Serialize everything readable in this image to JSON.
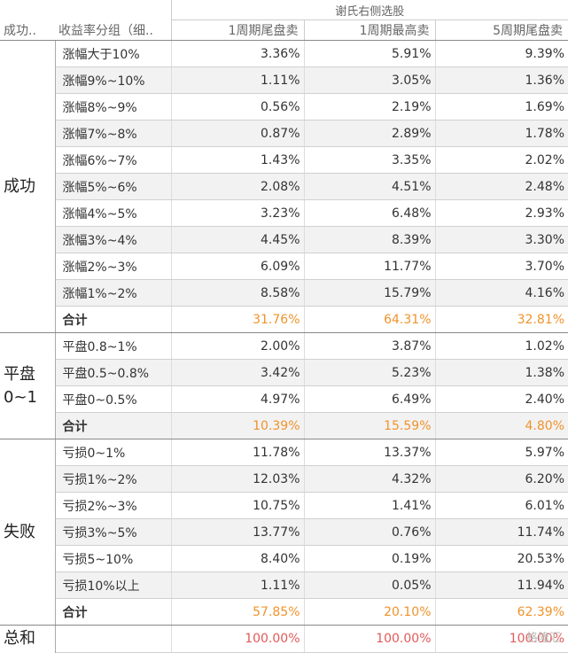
{
  "header": {
    "top_title": "谢氏右侧选股",
    "col_group": "成功..",
    "col_label": "收益率分组（细..",
    "cols": [
      "1周期尾盘卖",
      "1周期最高卖",
      "5周期尾盘卖"
    ]
  },
  "groups": [
    {
      "name": "成功",
      "rows": [
        {
          "label": "涨幅大于10%",
          "values": [
            "3.36%",
            "5.91%",
            "9.39%"
          ]
        },
        {
          "label": "涨幅9%~10%",
          "values": [
            "1.11%",
            "3.05%",
            "1.36%"
          ]
        },
        {
          "label": "涨幅8%~9%",
          "values": [
            "0.56%",
            "2.19%",
            "1.69%"
          ]
        },
        {
          "label": "涨幅7%~8%",
          "values": [
            "0.87%",
            "2.89%",
            "1.78%"
          ]
        },
        {
          "label": "涨幅6%~7%",
          "values": [
            "1.43%",
            "3.35%",
            "2.02%"
          ]
        },
        {
          "label": "涨幅5%~6%",
          "values": [
            "2.08%",
            "4.51%",
            "2.48%"
          ]
        },
        {
          "label": "涨幅4%~5%",
          "values": [
            "3.23%",
            "6.48%",
            "2.93%"
          ]
        },
        {
          "label": "涨幅3%~4%",
          "values": [
            "4.45%",
            "8.39%",
            "3.30%"
          ]
        },
        {
          "label": "涨幅2%~3%",
          "values": [
            "6.09%",
            "11.77%",
            "3.70%"
          ]
        },
        {
          "label": "涨幅1%~2%",
          "values": [
            "8.58%",
            "15.79%",
            "4.16%"
          ]
        }
      ],
      "total": {
        "label": "合计",
        "values": [
          "31.76%",
          "64.31%",
          "32.81%"
        ]
      }
    },
    {
      "name": "平盘0~1",
      "rows": [
        {
          "label": "平盘0.8~1%",
          "values": [
            "2.00%",
            "3.87%",
            "1.02%"
          ]
        },
        {
          "label": "平盘0.5~0.8%",
          "values": [
            "3.42%",
            "5.23%",
            "1.38%"
          ]
        },
        {
          "label": "平盘0~0.5%",
          "values": [
            "4.97%",
            "6.49%",
            "2.40%"
          ]
        }
      ],
      "total": {
        "label": "合计",
        "values": [
          "10.39%",
          "15.59%",
          "4.80%"
        ]
      }
    },
    {
      "name": "失败",
      "rows": [
        {
          "label": "亏损0~1%",
          "values": [
            "11.78%",
            "13.37%",
            "5.97%"
          ]
        },
        {
          "label": "亏损1%~2%",
          "values": [
            "12.03%",
            "4.32%",
            "6.20%"
          ]
        },
        {
          "label": "亏损2%~3%",
          "values": [
            "10.75%",
            "1.41%",
            "6.01%"
          ]
        },
        {
          "label": "亏损3%~5%",
          "values": [
            "13.77%",
            "0.76%",
            "11.74%"
          ]
        },
        {
          "label": "亏损5~10%",
          "values": [
            "8.40%",
            "0.19%",
            "20.53%"
          ]
        },
        {
          "label": "亏损10%以上",
          "values": [
            "1.11%",
            "0.05%",
            "11.94%"
          ]
        }
      ],
      "total": {
        "label": "合计",
        "values": [
          "57.85%",
          "20.10%",
          "62.39%"
        ]
      }
    }
  ],
  "grand_total": {
    "label": "总和",
    "values": [
      "100.00%",
      "100.00%",
      "100.00%"
    ]
  },
  "watermark": "格隆汇",
  "colors": {
    "total_orange": "#f0932b",
    "grand_red": "#e05a5a"
  }
}
